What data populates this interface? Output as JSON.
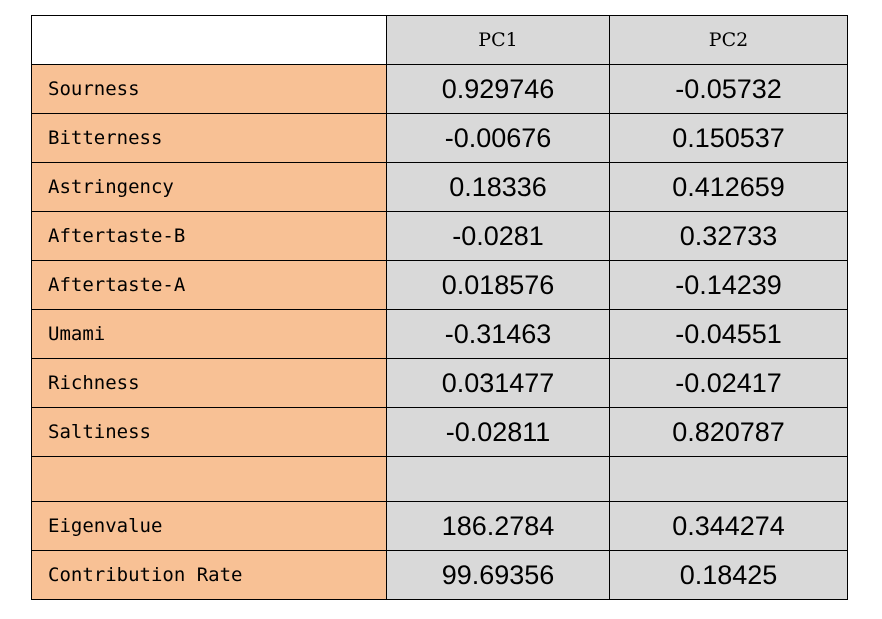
{
  "chart_data": {
    "type": "table",
    "columns": [
      "",
      "PC1",
      "PC2"
    ],
    "rows": [
      {
        "label": "Sourness",
        "values": [
          "0.929746",
          "-0.05732"
        ]
      },
      {
        "label": "Bitterness",
        "values": [
          "-0.00676",
          "0.150537"
        ]
      },
      {
        "label": "Astringency",
        "values": [
          "0.18336",
          "0.412659"
        ]
      },
      {
        "label": "Aftertaste-B",
        "values": [
          "-0.0281",
          "0.32733"
        ]
      },
      {
        "label": "Aftertaste-A",
        "values": [
          "0.018576",
          "-0.14239"
        ]
      },
      {
        "label": "Umami",
        "values": [
          "-0.31463",
          "-0.04551"
        ]
      },
      {
        "label": "Richness",
        "values": [
          "0.031477",
          "-0.02417"
        ]
      },
      {
        "label": "Saltiness",
        "values": [
          "-0.02811",
          "0.820787"
        ]
      },
      {
        "label": "",
        "values": [
          "",
          ""
        ]
      },
      {
        "label": "Eigenvalue",
        "values": [
          "186.2784",
          "0.344274"
        ]
      },
      {
        "label": "Contribution Rate",
        "values": [
          "99.69356",
          "0.18425"
        ]
      }
    ]
  },
  "colors": {
    "label_fill": "#f8c195",
    "cell_fill": "#d9d9d9",
    "border": "#000000"
  }
}
